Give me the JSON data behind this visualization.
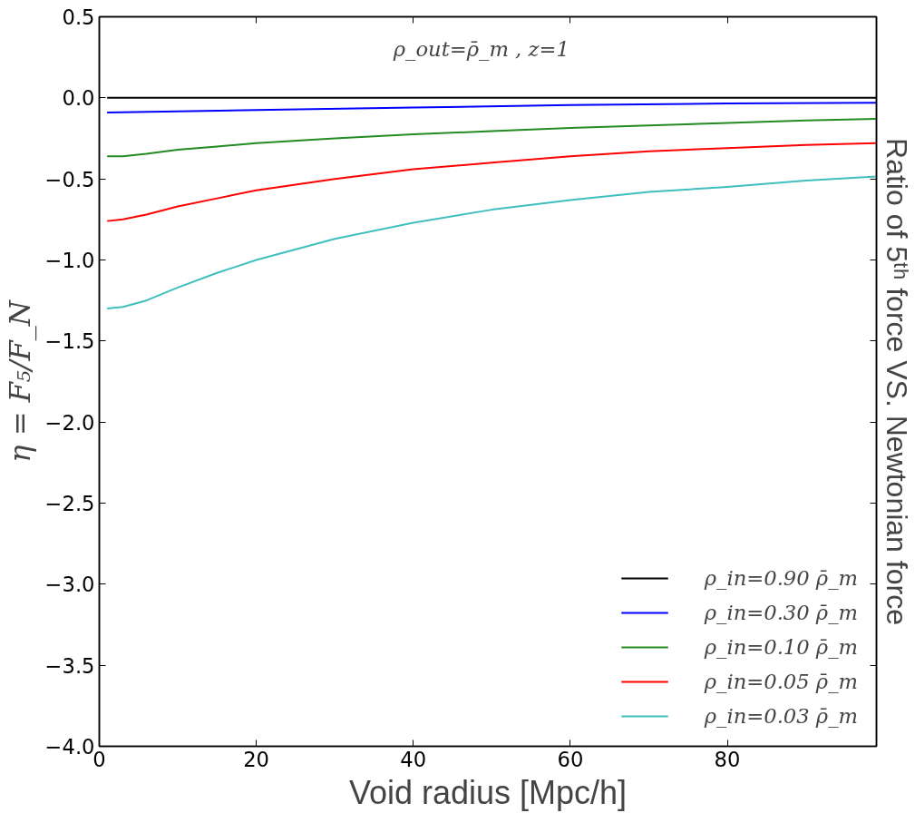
{
  "chart_data": {
    "type": "line",
    "xlabel": "Void radius [Mpc/h]",
    "ylabel": "η = F₅/F_N",
    "y2label": "Ratio of 5ᵗʰ force VS. Newtonian force",
    "annotations": [
      "ρ_out=ρ̄_m ,   z=1"
    ],
    "xlim": [
      0,
      99
    ],
    "xticks": [
      0,
      20,
      40,
      60,
      80
    ],
    "ylim": [
      -4.0,
      0.5
    ],
    "yticks": [
      {
        "value": -4.0,
        "label": "−4.0"
      },
      {
        "value": -3.5,
        "label": "−3.5"
      },
      {
        "value": -3.0,
        "label": "−3.0"
      },
      {
        "value": -2.5,
        "label": "−2.5"
      },
      {
        "value": -2.0,
        "label": "−2.0"
      },
      {
        "value": -1.5,
        "label": "−1.5"
      },
      {
        "value": -1.0,
        "label": "−1.0"
      },
      {
        "value": -0.5,
        "label": "−0.5"
      },
      {
        "value": 0.0,
        "label": "0.0"
      },
      {
        "value": 0.5,
        "label": "0.5"
      }
    ],
    "grid": false,
    "legend": "bottom right",
    "marker": "none",
    "line_style": "solid",
    "series": [
      {
        "name": "ρ_in=0.90 ρ̄_m",
        "color": "#000000",
        "x": [
          1,
          99
        ],
        "values": [
          0.0,
          0.0
        ]
      },
      {
        "name": "ρ_in=0.30 ρ̄_m",
        "color": "#0000ff",
        "x": [
          1,
          20,
          40,
          60,
          80,
          99
        ],
        "values": [
          -0.09,
          -0.075,
          -0.06,
          -0.045,
          -0.035,
          -0.03
        ]
      },
      {
        "name": "ρ_in=0.10 ρ̄_m",
        "color": "#228b22",
        "x": [
          1,
          3,
          6,
          10,
          15,
          20,
          30,
          40,
          50,
          60,
          70,
          80,
          90,
          99
        ],
        "values": [
          -0.36,
          -0.36,
          -0.345,
          -0.32,
          -0.3,
          -0.28,
          -0.25,
          -0.225,
          -0.205,
          -0.185,
          -0.17,
          -0.155,
          -0.14,
          -0.13
        ]
      },
      {
        "name": "ρ_in=0.05 ρ̄_m",
        "color": "#ff0000",
        "x": [
          1,
          3,
          6,
          10,
          15,
          20,
          30,
          40,
          50,
          60,
          70,
          80,
          90,
          99
        ],
        "values": [
          -0.76,
          -0.75,
          -0.72,
          -0.67,
          -0.62,
          -0.57,
          -0.5,
          -0.44,
          -0.4,
          -0.36,
          -0.33,
          -0.31,
          -0.29,
          -0.28
        ]
      },
      {
        "name": "ρ_in=0.03 ρ̄_m",
        "color": "#40bfbf",
        "x": [
          1,
          3,
          6,
          10,
          15,
          20,
          30,
          40,
          50,
          60,
          70,
          80,
          90,
          99
        ],
        "values": [
          -1.3,
          -1.29,
          -1.25,
          -1.17,
          -1.08,
          -1.0,
          -0.87,
          -0.77,
          -0.69,
          -0.63,
          -0.58,
          -0.55,
          -0.51,
          -0.485
        ]
      }
    ]
  }
}
